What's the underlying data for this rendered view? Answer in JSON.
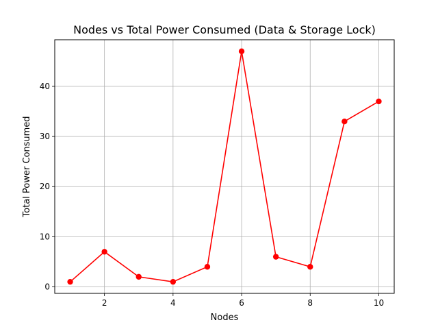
{
  "chart_data": {
    "type": "line",
    "title": "Nodes vs Total Power Consumed (Data  & Storage Lock)",
    "xlabel": "Nodes",
    "ylabel": "Total Power Consumed",
    "x": [
      1,
      2,
      3,
      4,
      5,
      6,
      7,
      8,
      9,
      10
    ],
    "series": [
      {
        "values": [
          1,
          7,
          2,
          1,
          4,
          47,
          6,
          4,
          33,
          37
        ],
        "color": "#ff0000",
        "marker": "circle"
      }
    ],
    "xlim": [
      0.55,
      10.45
    ],
    "ylim": [
      -1.3,
      49.3
    ],
    "xticks": [
      2,
      4,
      6,
      8,
      10
    ],
    "yticks": [
      0,
      10,
      20,
      30,
      40
    ],
    "grid": true
  }
}
